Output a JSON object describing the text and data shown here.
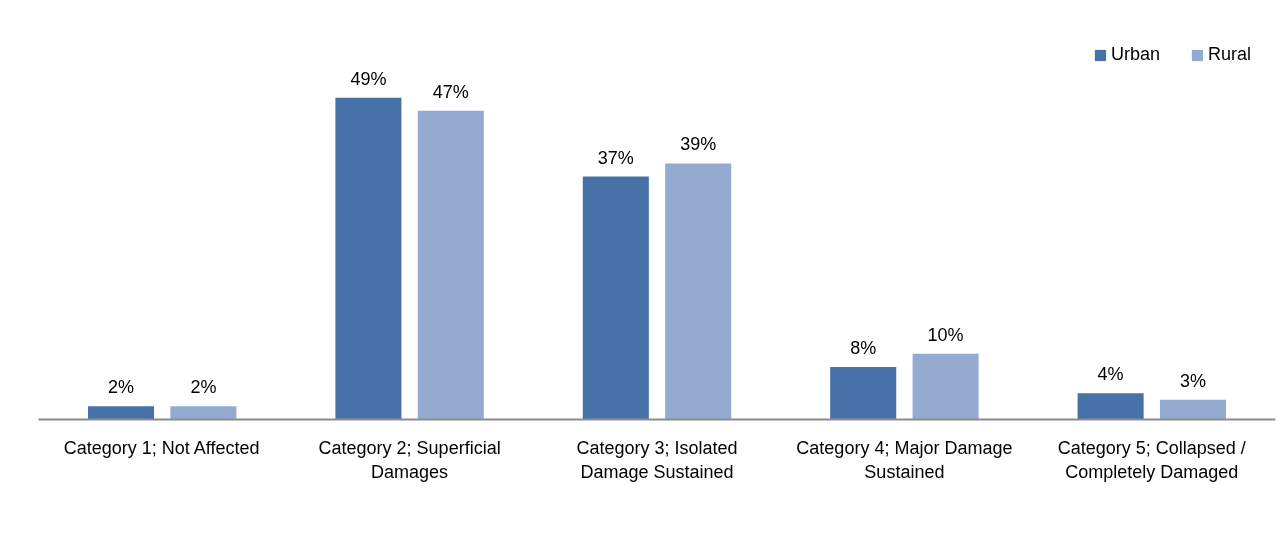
{
  "chart_data": {
    "type": "bar",
    "categories": [
      "Category 1; Not Affected",
      "Category 2; Superficial Damages",
      "Category 3; Isolated Damage Sustained",
      "Category 4; Major Damage Sustained",
      "Category 5; Collapsed / Completely Damaged"
    ],
    "series": [
      {
        "name": "Urban",
        "color": "#4672a7",
        "values": [
          2,
          49,
          37,
          8,
          4
        ],
        "value_labels": [
          "2%",
          "49%",
          "37%",
          "8%",
          "4%"
        ]
      },
      {
        "name": "Rural",
        "color": "#95aad1",
        "values": [
          2,
          47,
          39,
          10,
          3
        ],
        "value_labels": [
          "2%",
          "47%",
          "39%",
          "10%",
          "3%"
        ]
      }
    ],
    "legend": "top right",
    "tick_labels": "x"
  }
}
